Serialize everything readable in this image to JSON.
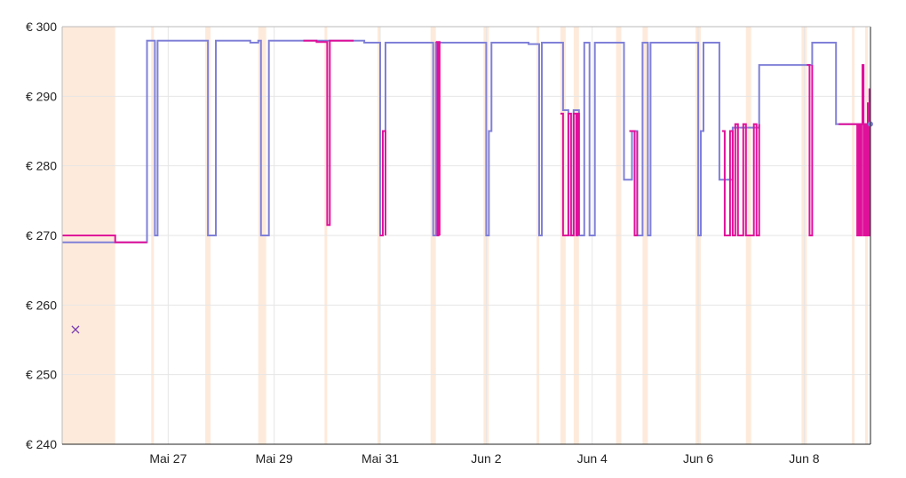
{
  "chart_data": {
    "type": "line",
    "title": "",
    "xlabel": "",
    "ylabel": "",
    "y_axis": {
      "min": 240,
      "max": 300,
      "ticks": [
        240,
        250,
        260,
        270,
        280,
        290,
        300
      ],
      "tick_labels": [
        "€ 240",
        "€ 250",
        "€ 260",
        "€ 270",
        "€ 280",
        "€ 290",
        "€ 300"
      ]
    },
    "x_axis": {
      "start_day": 25.0,
      "end_day": 40.25,
      "ticks": [
        27,
        29,
        31,
        33,
        35,
        37,
        39
      ],
      "tick_labels": [
        "Mai 27",
        "Mai 29",
        "Mai 31",
        "Jun 2",
        "Jun 4",
        "Jun 6",
        "Jun 8"
      ]
    },
    "grid": true,
    "colors": {
      "series_blue": "#8080d8",
      "series_magenta": "#e0109a",
      "band": "#fde3cf",
      "grid": "#e6e6e6",
      "axis": "#222222"
    },
    "series": [
      {
        "id": "blue",
        "step": true,
        "points": [
          [
            25.0,
            269
          ],
          [
            26.6,
            298
          ],
          [
            26.75,
            270
          ],
          [
            26.8,
            298
          ],
          [
            27.75,
            270
          ],
          [
            27.9,
            298
          ],
          [
            28.55,
            297.7
          ],
          [
            28.7,
            298
          ],
          [
            28.75,
            270
          ],
          [
            28.9,
            298
          ],
          [
            30.7,
            297.7
          ],
          [
            31.0,
            270
          ],
          [
            31.05,
            285
          ],
          [
            31.1,
            297.7
          ],
          [
            32.0,
            270
          ],
          [
            32.05,
            297.7
          ],
          [
            33.0,
            270
          ],
          [
            33.05,
            285
          ],
          [
            33.1,
            297.7
          ],
          [
            33.8,
            297.5
          ],
          [
            34.0,
            270
          ],
          [
            34.05,
            297.7
          ],
          [
            34.45,
            288
          ],
          [
            34.55,
            270
          ],
          [
            34.65,
            288
          ],
          [
            34.75,
            270
          ],
          [
            34.85,
            297.7
          ],
          [
            34.95,
            270
          ],
          [
            35.05,
            297.7
          ],
          [
            35.6,
            278
          ],
          [
            35.75,
            285
          ],
          [
            35.85,
            270
          ],
          [
            35.95,
            297.7
          ],
          [
            36.05,
            270
          ],
          [
            36.1,
            297.7
          ],
          [
            37.0,
            270
          ],
          [
            37.05,
            285
          ],
          [
            37.1,
            297.7
          ],
          [
            37.4,
            278
          ],
          [
            37.65,
            285.5
          ],
          [
            38.1,
            285.5
          ],
          [
            38.15,
            294.5
          ],
          [
            39.05,
            294.5
          ],
          [
            39.15,
            297.7
          ],
          [
            39.6,
            286
          ],
          [
            40.25,
            286
          ]
        ]
      },
      {
        "id": "magenta",
        "step": true,
        "points": [
          [
            25.0,
            270
          ],
          [
            26.0,
            269
          ],
          [
            26.6,
            269
          ]
        ]
      },
      {
        "id": "magenta",
        "step": true,
        "points": [
          [
            29.55,
            298
          ],
          [
            29.8,
            297.8
          ],
          [
            30.0,
            271.5
          ],
          [
            30.05,
            298
          ],
          [
            30.5,
            298
          ]
        ]
      },
      {
        "id": "magenta",
        "step": true,
        "points": [
          [
            31.0,
            270
          ],
          [
            31.05,
            285
          ],
          [
            31.1,
            270
          ]
        ]
      },
      {
        "id": "magenta",
        "step": true,
        "points": [
          [
            32.05,
            297.8
          ],
          [
            32.08,
            270
          ],
          [
            32.1,
            297.8
          ],
          [
            32.12,
            270
          ]
        ]
      },
      {
        "id": "magenta",
        "step": true,
        "points": [
          [
            34.4,
            287.5
          ],
          [
            34.45,
            270
          ],
          [
            34.55,
            287.5
          ],
          [
            34.6,
            270
          ],
          [
            34.65,
            287.5
          ],
          [
            34.7,
            270
          ],
          [
            34.72,
            287.5
          ],
          [
            34.75,
            270
          ]
        ]
      },
      {
        "id": "magenta",
        "step": true,
        "points": [
          [
            35.7,
            285
          ],
          [
            35.8,
            270
          ],
          [
            35.85,
            285
          ]
        ]
      },
      {
        "id": "magenta",
        "step": true,
        "points": [
          [
            37.45,
            285
          ],
          [
            37.5,
            270
          ],
          [
            37.6,
            285
          ],
          [
            37.65,
            270
          ],
          [
            37.7,
            286
          ],
          [
            37.75,
            270
          ],
          [
            37.85,
            286
          ],
          [
            37.9,
            270
          ],
          [
            38.05,
            286
          ],
          [
            38.1,
            270
          ],
          [
            38.15,
            286
          ]
        ]
      },
      {
        "id": "magenta",
        "step": true,
        "points": [
          [
            39.05,
            294.5
          ],
          [
            39.1,
            270
          ],
          [
            39.15,
            294.5
          ]
        ]
      },
      {
        "id": "magenta",
        "step": true,
        "points": [
          [
            39.65,
            286
          ],
          [
            39.95,
            286
          ],
          [
            40.0,
            270
          ],
          [
            40.03,
            286
          ],
          [
            40.06,
            270
          ],
          [
            40.08,
            286
          ],
          [
            40.1,
            294.5
          ],
          [
            40.12,
            270
          ],
          [
            40.15,
            286
          ],
          [
            40.18,
            270
          ],
          [
            40.2,
            289
          ],
          [
            40.22,
            270
          ],
          [
            40.23,
            291
          ],
          [
            40.25,
            291
          ]
        ]
      }
    ],
    "bands": [
      [
        25.0,
        26.0
      ],
      [
        26.68,
        26.72
      ],
      [
        27.7,
        27.8
      ],
      [
        28.7,
        28.85
      ],
      [
        29.95,
        30.0
      ],
      [
        30.95,
        31.0
      ],
      [
        31.95,
        32.05
      ],
      [
        32.95,
        33.05
      ],
      [
        33.95,
        34.0
      ],
      [
        34.4,
        34.5
      ],
      [
        34.65,
        34.75
      ],
      [
        35.45,
        35.55
      ],
      [
        35.95,
        36.05
      ],
      [
        36.95,
        37.05
      ],
      [
        37.9,
        38.0
      ],
      [
        38.95,
        39.05
      ],
      [
        39.9,
        39.95
      ],
      [
        40.15,
        40.2
      ]
    ],
    "markers": [
      {
        "day": 25.25,
        "value": 256.5,
        "glyph": "×",
        "color": "#7a3fb0"
      }
    ]
  }
}
